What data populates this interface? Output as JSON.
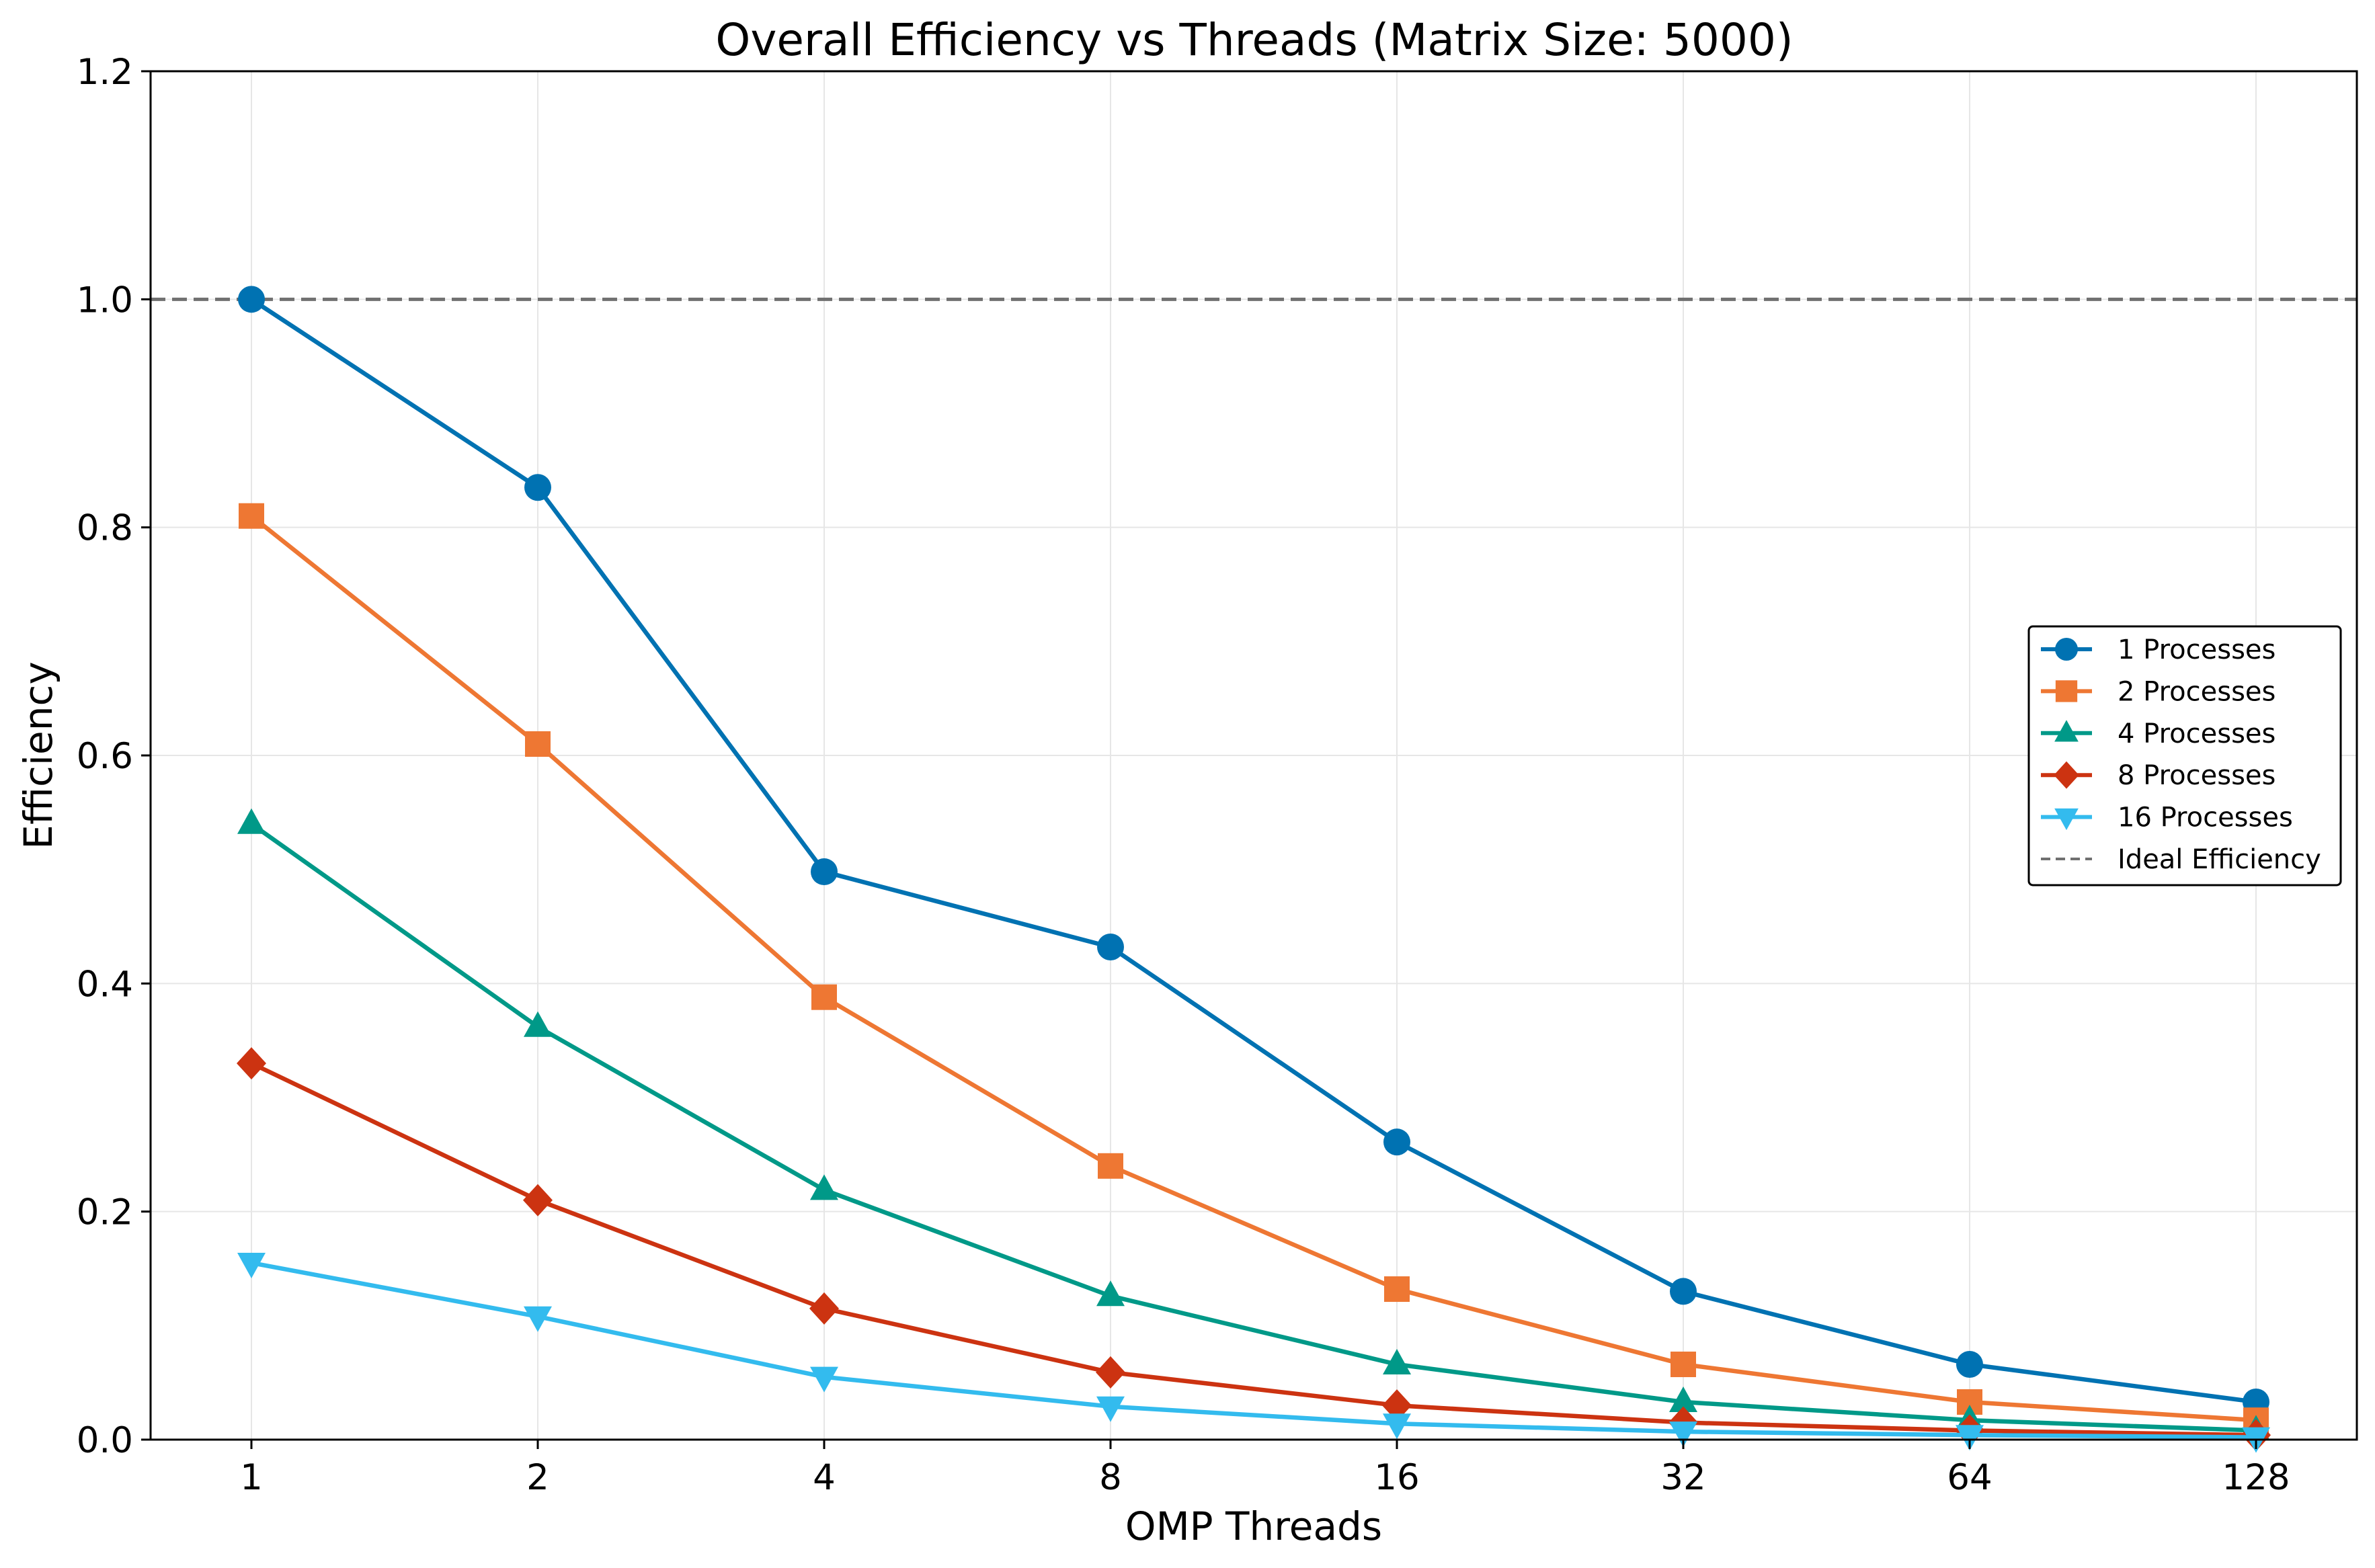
{
  "chart_data": {
    "type": "line",
    "title": "Overall Efficiency vs Threads (Matrix Size: 5000)",
    "xlabel": "OMP Threads",
    "ylabel": "Efficiency",
    "x_scale": "log2",
    "x": [
      1,
      2,
      4,
      8,
      16,
      32,
      64,
      128
    ],
    "x_tick_labels": [
      "1",
      "2",
      "4",
      "8",
      "16",
      "32",
      "64",
      "128"
    ],
    "ylim": [
      0,
      1.2
    ],
    "y_ticks": [
      0.0,
      0.2,
      0.4,
      0.6,
      0.8,
      1.0,
      1.2
    ],
    "y_tick_labels": [
      "0.0",
      "0.2",
      "0.4",
      "0.6",
      "0.8",
      "1.0",
      "1.2"
    ],
    "grid": true,
    "legend_position": "center-right",
    "series": [
      {
        "name": "1 Processes",
        "color": "#0072b2",
        "marker": "circle",
        "values": [
          1.0,
          0.835,
          0.498,
          0.432,
          0.261,
          0.13,
          0.066,
          0.033
        ]
      },
      {
        "name": "2 Processes",
        "color": "#ee7733",
        "marker": "square",
        "values": [
          0.81,
          0.61,
          0.388,
          0.24,
          0.132,
          0.066,
          0.033,
          0.017
        ]
      },
      {
        "name": "4 Processes",
        "color": "#009988",
        "marker": "triangle-up",
        "values": [
          0.54,
          0.362,
          0.219,
          0.126,
          0.066,
          0.033,
          0.017,
          0.008
        ]
      },
      {
        "name": "8 Processes",
        "color": "#cc3311",
        "marker": "diamond",
        "values": [
          0.33,
          0.21,
          0.115,
          0.059,
          0.03,
          0.015,
          0.008,
          0.004
        ]
      },
      {
        "name": "16 Processes",
        "color": "#33bbee",
        "marker": "triangle-down",
        "values": [
          0.155,
          0.108,
          0.055,
          0.029,
          0.014,
          0.007,
          0.004,
          0.002
        ]
      }
    ],
    "reference_line": {
      "name": "Ideal Efficiency",
      "y": 1.0,
      "color": "#707070",
      "style": "dashed"
    }
  }
}
